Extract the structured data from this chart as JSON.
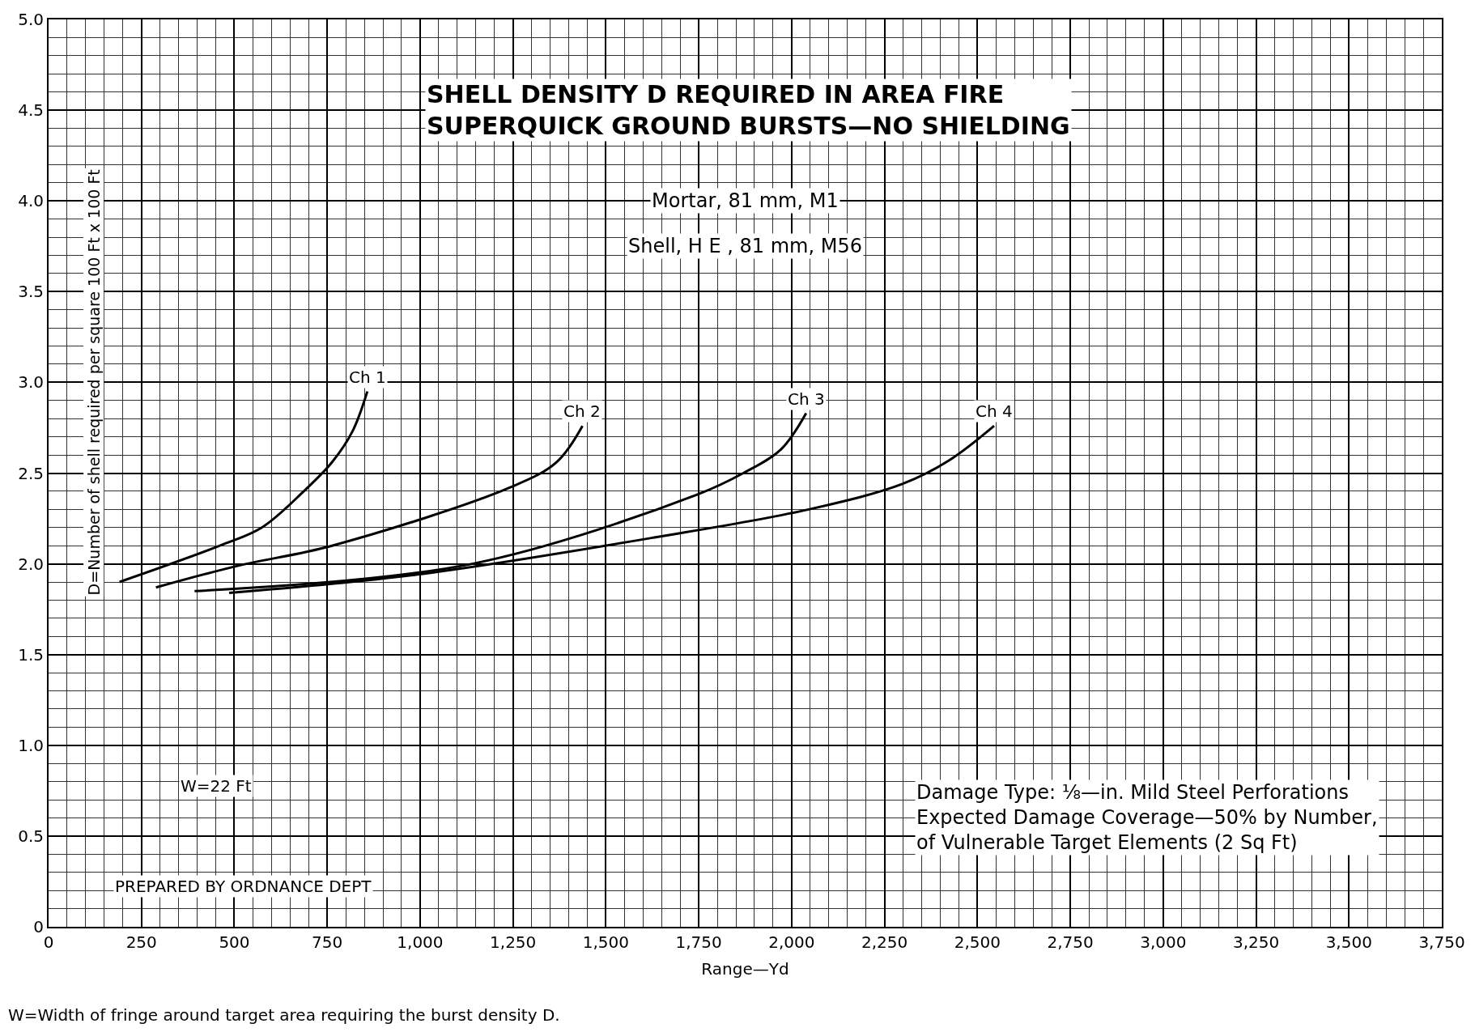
{
  "chart_data": {
    "type": "line",
    "title": "SHELL DENSITY D REQUIRED IN AREA FIRE\nSUPERQUICK GROUND BURSTS—NO SHIELDING",
    "xlabel": "Range—Yd",
    "ylabel": "D=Number of shell required per square 100 Ft x 100 Ft",
    "series": [
      {
        "name": "Ch 1",
        "color": "#000000",
        "x": [
          191,
          461,
          574,
          687,
          763,
          818,
          858
        ],
        "values": [
          1.9,
          2.1,
          2.2,
          2.4,
          2.56,
          2.73,
          2.95
        ]
      },
      {
        "name": "Ch 2",
        "color": "#000000",
        "x": [
          289,
          511,
          763,
          1241,
          1367,
          1437
        ],
        "values": [
          1.87,
          1.99,
          2.1,
          2.42,
          2.56,
          2.76
        ]
      },
      {
        "name": "Ch 3",
        "color": "#000000",
        "x": [
          393,
          1140,
          1744,
          1870,
          1971,
          2039
        ],
        "values": [
          1.85,
          2.0,
          2.38,
          2.5,
          2.63,
          2.83
        ]
      },
      {
        "name": "Ch 4",
        "color": "#000000",
        "x": [
          486,
          989,
          1644,
          2046,
          2298,
          2424,
          2545
        ],
        "values": [
          1.84,
          1.94,
          2.15,
          2.3,
          2.44,
          2.57,
          2.76
        ]
      }
    ],
    "xlim": [
      0,
      3750
    ],
    "xticks": [
      0,
      250,
      500,
      750,
      {
        "value": 1000,
        "label": "1,000"
      },
      {
        "value": 1250,
        "label": "1,250"
      },
      {
        "value": 1500,
        "label": "1,500"
      },
      {
        "value": 1750,
        "label": "1,750"
      },
      {
        "value": 2000,
        "label": "2,000"
      },
      {
        "value": 2250,
        "label": "2,250"
      },
      {
        "value": 2500,
        "label": "2,500"
      },
      {
        "value": 2750,
        "label": "2,750"
      },
      {
        "value": 3000,
        "label": "3,000"
      },
      {
        "value": 3250,
        "label": "3,250"
      },
      {
        "value": 3500,
        "label": "3,500"
      },
      {
        "value": 3750,
        "label": "3,750"
      }
    ],
    "ylim": [
      0,
      5
    ],
    "yticks": [
      0,
      0.5,
      {
        "value": 1,
        "label": "1.0"
      },
      1.5,
      {
        "value": 2,
        "label": "2.0"
      },
      2.5,
      {
        "value": 3,
        "label": "3.0"
      },
      3.5,
      {
        "value": 4,
        "label": "4.0"
      },
      4.5,
      {
        "value": 5,
        "label": "5.0"
      }
    ],
    "grid": true,
    "legend": false,
    "line_style": "solid",
    "marker": "none",
    "annotations": [
      "Mortar, 81 mm, M1",
      "Shell, H E , 81 mm, M56",
      "W=22 Ft",
      "PREPARED BY ORDNANCE DEPT",
      "Damage Type: ⅛—in. Mild Steel Perforations\nExpected Damage Coverage—50% by Number,\nof Vulnerable Target Elements (2 Sq Ft)",
      "W=Width of fringe around target area requiring the burst density D."
    ]
  }
}
